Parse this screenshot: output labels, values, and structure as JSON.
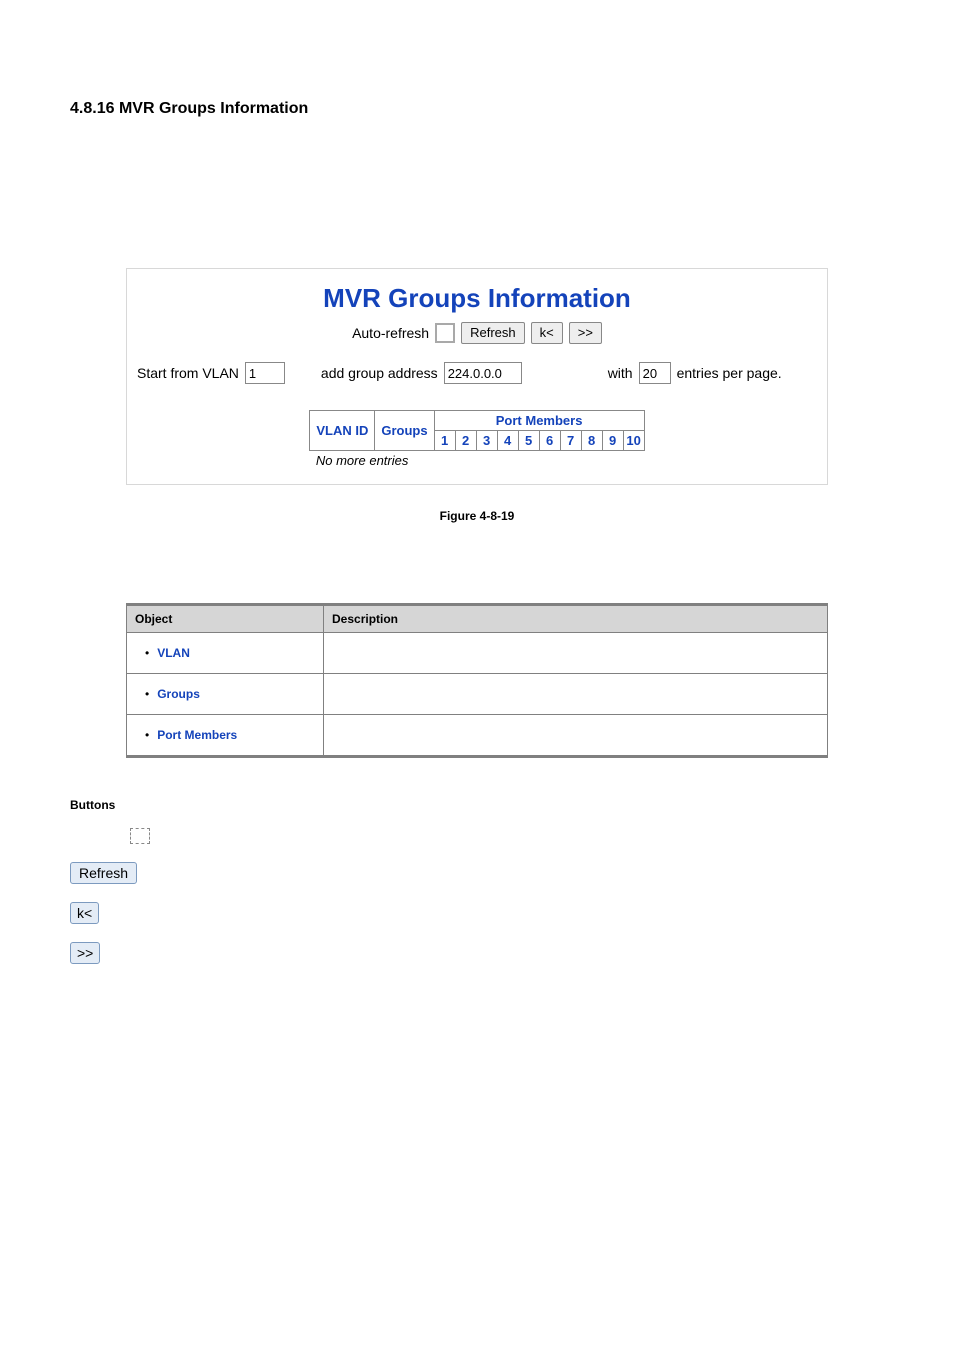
{
  "section": {
    "number": "4.8.16",
    "title": "MVR Groups Information"
  },
  "panel": {
    "title": "MVR Groups Information",
    "controls": {
      "auto_refresh_label": "Auto-refresh",
      "refresh_label": "Refresh",
      "first_label": "k<",
      "next_label": ">>"
    },
    "filter": {
      "start_label": "Start from VLAN",
      "vlan_value": "1",
      "addr_label": "add group address",
      "addr_value": "224.0.0.0",
      "with_label": "with",
      "entries_value": "20",
      "entries_per_page_label": "entries per page."
    },
    "table": {
      "port_members_header": "Port Members",
      "vlan_id_header": "VLAN ID",
      "groups_header": "Groups",
      "ports": [
        "1",
        "2",
        "3",
        "4",
        "5",
        "6",
        "7",
        "8",
        "9",
        "10"
      ],
      "no_entries_text": "No more entries"
    }
  },
  "figure_caption": "Figure 4-8-19",
  "desc_table": {
    "header_object": "Object",
    "header_desc": "Description",
    "rows": [
      {
        "label": "VLAN",
        "desc": ""
      },
      {
        "label": "Groups",
        "desc": ""
      },
      {
        "label": "Port Members",
        "desc": ""
      }
    ]
  },
  "buttons_section": {
    "heading": "Buttons",
    "refresh": "Refresh",
    "first": "k<",
    "next": ">>"
  },
  "colors": {
    "brand_blue": "#1443ba",
    "panel_border": "#d8d8d8",
    "table_border": "#888888",
    "desc_border": "#808080",
    "desc_header_bg": "#d6d6d6",
    "std_button_bg": "#e4ecf6",
    "std_button_border": "#7c9abf"
  }
}
